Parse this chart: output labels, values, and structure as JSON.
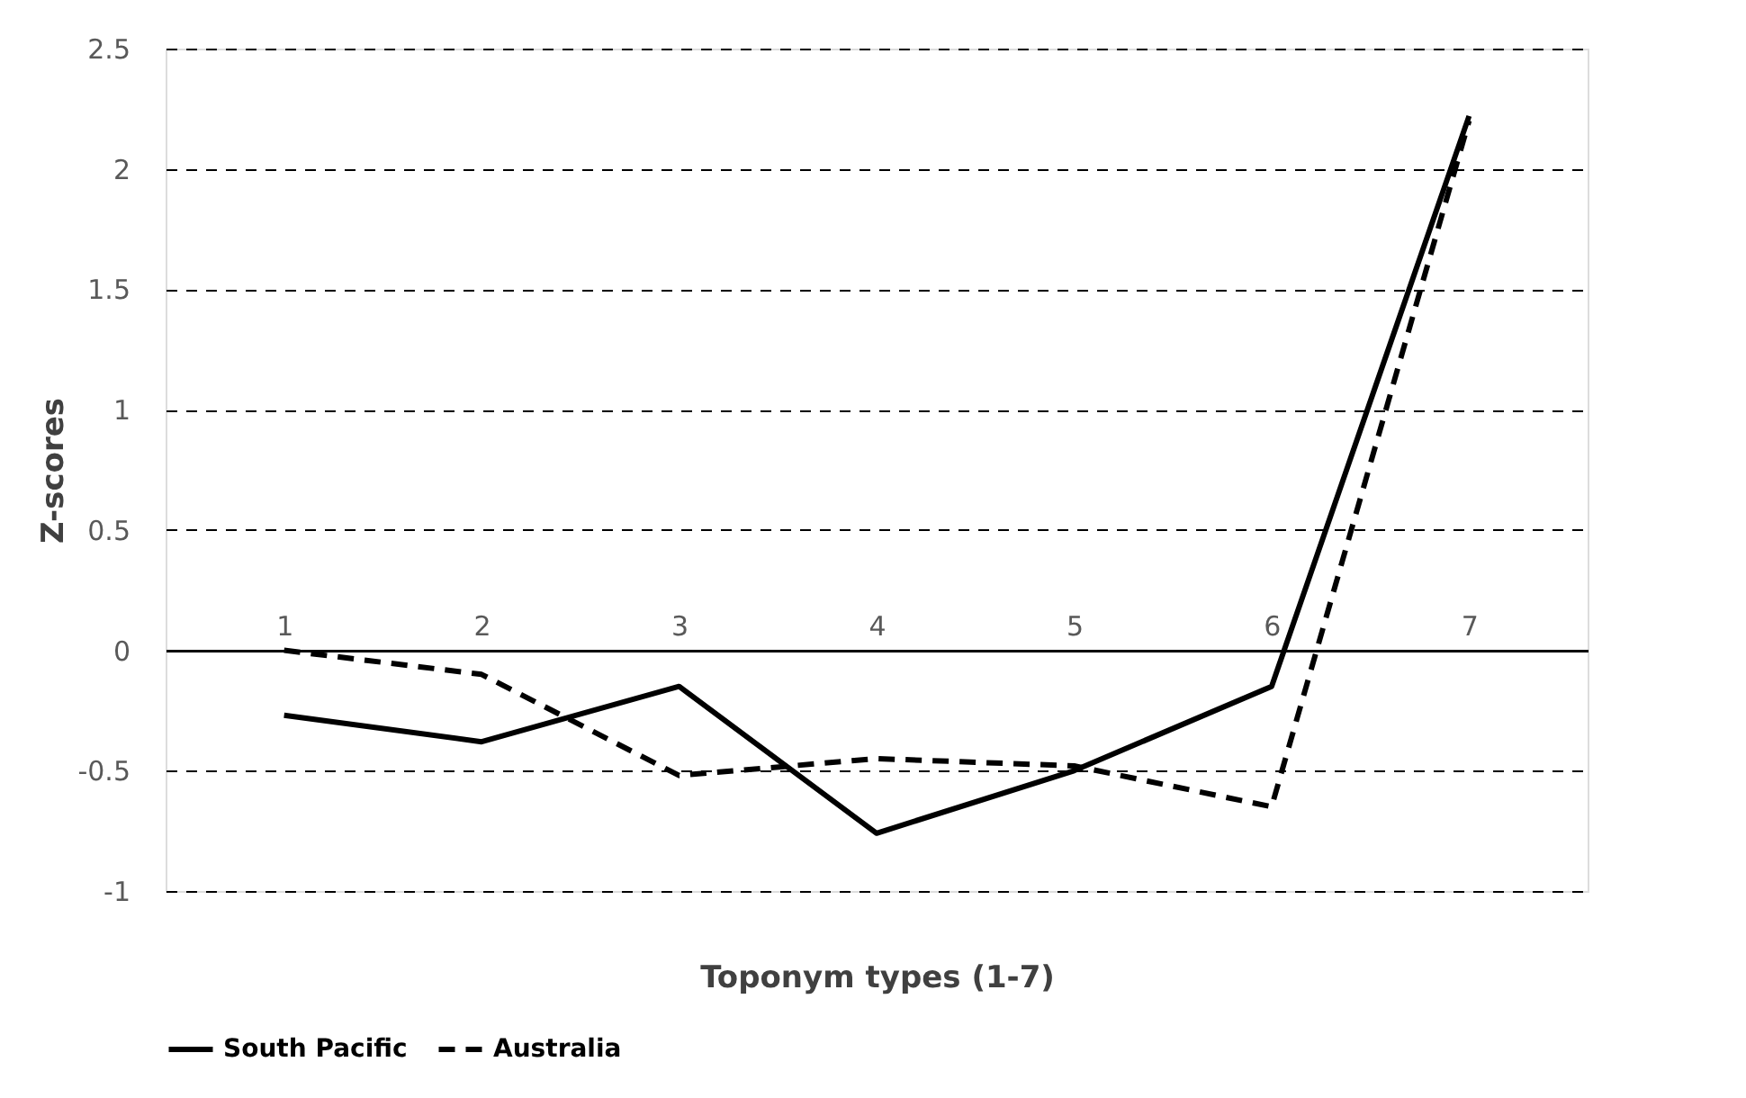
{
  "chart_data": {
    "type": "line",
    "xlabel": "Toponym types (1-7)",
    "ylabel": "Z-scores",
    "categories": [
      "1",
      "2",
      "3",
      "4",
      "5",
      "6",
      "7"
    ],
    "series": [
      {
        "name": "South Pacific",
        "color": "#000000",
        "line_style": "solid",
        "values": [
          -0.27,
          -0.38,
          -0.15,
          -0.76,
          -0.5,
          -0.15,
          2.22
        ]
      },
      {
        "name": "Australia",
        "color": "#000000",
        "line_style": "dashed",
        "values": [
          0.0,
          -0.1,
          -0.52,
          -0.45,
          -0.48,
          -0.65,
          2.2
        ]
      }
    ],
    "ylim": [
      -1,
      2.5
    ],
    "yticks": [
      -1,
      -0.5,
      0,
      0.5,
      1,
      1.5,
      2,
      2.5
    ],
    "grid": "y",
    "legend": "bottom",
    "marker": "none"
  }
}
